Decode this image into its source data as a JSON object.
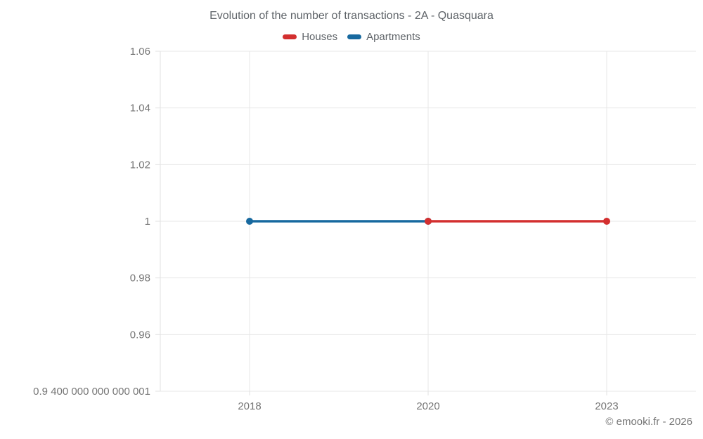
{
  "title": "Evolution of the number of transactions - 2A - Quasquara",
  "footer": "© emooki.fr - 2026",
  "legend": {
    "items": [
      {
        "label": "Houses",
        "color": "#d32f2f"
      },
      {
        "label": "Apartments",
        "color": "#17699f"
      }
    ]
  },
  "colors": {
    "grid": "#e7e7e7",
    "axis": "#e2e2e2",
    "tick_text": "#757575",
    "title_text": "#5f6469",
    "houses": "#d32f2f",
    "apartments": "#17699f"
  },
  "chart_data": {
    "type": "line",
    "title": "Evolution of the number of transactions - 2A - Quasquara",
    "x_categories": [
      "2018",
      "2020",
      "2023"
    ],
    "y_ticks": [
      {
        "value": 1.06,
        "label": "1.06"
      },
      {
        "value": 1.04,
        "label": "1.04"
      },
      {
        "value": 1.02,
        "label": "1.02"
      },
      {
        "value": 1.0,
        "label": "1"
      },
      {
        "value": 0.98,
        "label": "0.98"
      },
      {
        "value": 0.96,
        "label": "0.96"
      },
      {
        "value": 0.9400000000000001,
        "label": "0.9 400 000 000 000 001"
      }
    ],
    "ylim": [
      0.9400000000000001,
      1.06
    ],
    "grid": true,
    "legend_position": "top",
    "series": [
      {
        "name": "Apartments",
        "color": "#17699f",
        "points": [
          {
            "x": "2018",
            "y": 1
          },
          {
            "x": "2020",
            "y": 1
          }
        ]
      },
      {
        "name": "Houses",
        "color": "#d32f2f",
        "points": [
          {
            "x": "2020",
            "y": 1
          },
          {
            "x": "2023",
            "y": 1
          }
        ]
      }
    ]
  }
}
